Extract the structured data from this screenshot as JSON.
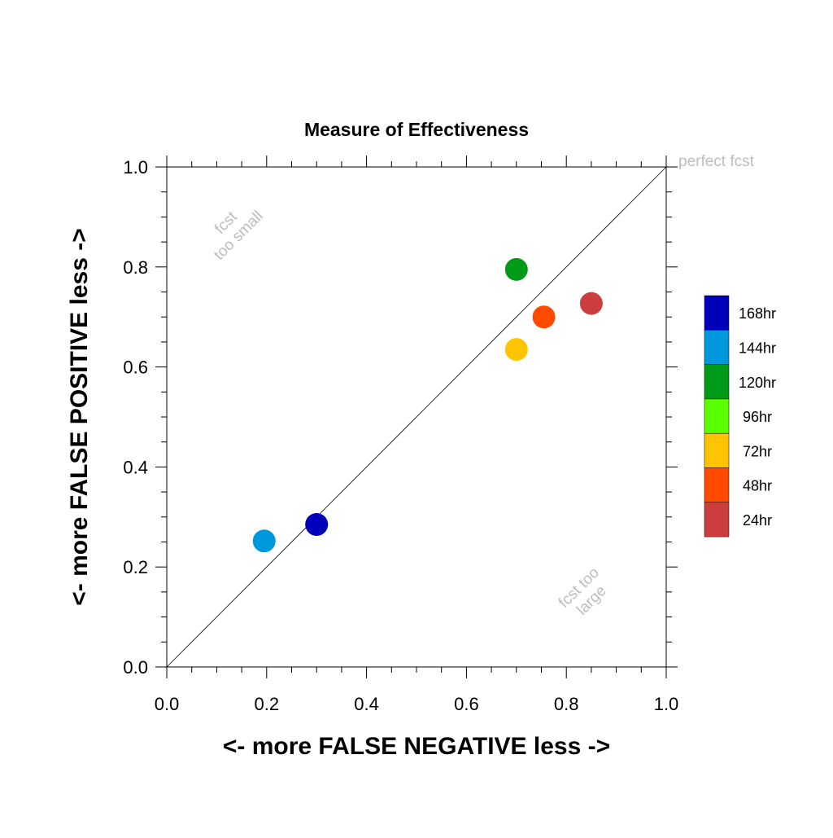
{
  "chart_data": {
    "type": "scatter",
    "title": "Measure of Effectiveness",
    "xlabel": "<- more   FALSE NEGATIVE   less ->",
    "ylabel": "<- more   FALSE POSITIVE   less ->",
    "xlim": [
      0.0,
      1.0
    ],
    "ylim": [
      0.0,
      1.0
    ],
    "xticks": [
      "0.0",
      "0.2",
      "0.4",
      "0.6",
      "0.8",
      "1.0"
    ],
    "yticks": [
      "0.0",
      "0.2",
      "0.4",
      "0.6",
      "0.8",
      "1.0"
    ],
    "grid": false,
    "reference_line": "diagonal y = x",
    "annotations": {
      "perfect": "perfect fcst",
      "too_small_line1": "fcst",
      "too_small_line2": "too small",
      "too_large_line1": "fcst too",
      "too_large_line2": "large"
    },
    "legend_position": "right",
    "series": [
      {
        "name": "168hr",
        "color": "#0000bb",
        "x": 0.3,
        "y": 0.285
      },
      {
        "name": "144hr",
        "color": "#0098dc",
        "x": 0.195,
        "y": 0.252
      },
      {
        "name": "120hr",
        "color": "#009a19",
        "x": 0.7,
        "y": 0.795
      },
      {
        "name": "96hr",
        "color": "#5aff00",
        "x": null,
        "y": null
      },
      {
        "name": "72hr",
        "color": "#ffc400",
        "x": 0.7,
        "y": 0.635
      },
      {
        "name": "48hr",
        "color": "#ff4a00",
        "x": 0.755,
        "y": 0.7
      },
      {
        "name": "24hr",
        "color": "#cc3d3d",
        "x": 0.85,
        "y": 0.727
      }
    ]
  }
}
